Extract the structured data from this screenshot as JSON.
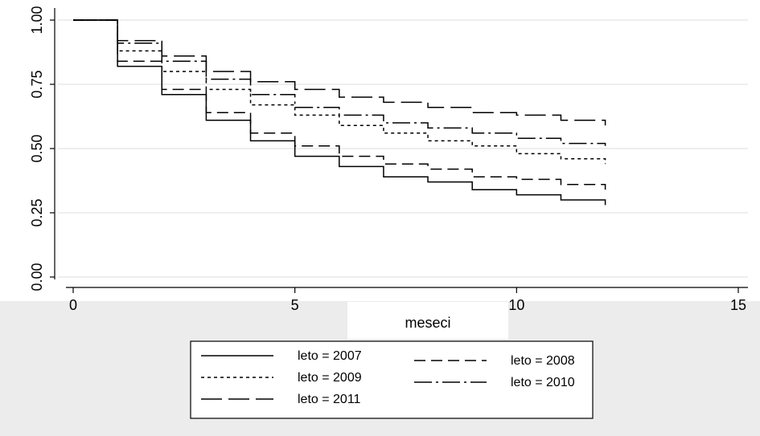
{
  "chart_data": {
    "type": "line",
    "step": true,
    "xlabel": "meseci",
    "ylabel": "",
    "title": "",
    "xlim": [
      0,
      15
    ],
    "ylim": [
      0,
      1
    ],
    "x_ticks": [
      "0",
      "5",
      "10",
      "15"
    ],
    "y_ticks": [
      "0.00",
      "0.25",
      "0.50",
      "0.75",
      "1.00"
    ],
    "grid": true,
    "legend_position": "bottom",
    "x": [
      0,
      1,
      2,
      3,
      4,
      5,
      6,
      7,
      8,
      9,
      10,
      11,
      12
    ],
    "series": [
      {
        "name": "leto = 2007",
        "values": [
          1.0,
          0.82,
          0.71,
          0.61,
          0.53,
          0.47,
          0.43,
          0.39,
          0.37,
          0.34,
          0.32,
          0.3,
          0.28
        ]
      },
      {
        "name": "leto = 2008",
        "values": [
          1.0,
          0.84,
          0.73,
          0.64,
          0.56,
          0.51,
          0.47,
          0.44,
          0.42,
          0.39,
          0.38,
          0.36,
          0.34
        ]
      },
      {
        "name": "leto = 2009",
        "values": [
          1.0,
          0.88,
          0.8,
          0.73,
          0.67,
          0.63,
          0.59,
          0.56,
          0.53,
          0.51,
          0.48,
          0.46,
          0.44
        ]
      },
      {
        "name": "leto = 2010",
        "values": [
          1.0,
          0.91,
          0.84,
          0.77,
          0.71,
          0.66,
          0.63,
          0.6,
          0.58,
          0.56,
          0.54,
          0.52,
          0.51
        ]
      },
      {
        "name": "leto = 2011",
        "values": [
          1.0,
          0.92,
          0.86,
          0.8,
          0.76,
          0.73,
          0.7,
          0.68,
          0.66,
          0.64,
          0.63,
          0.61,
          0.59
        ]
      }
    ]
  }
}
